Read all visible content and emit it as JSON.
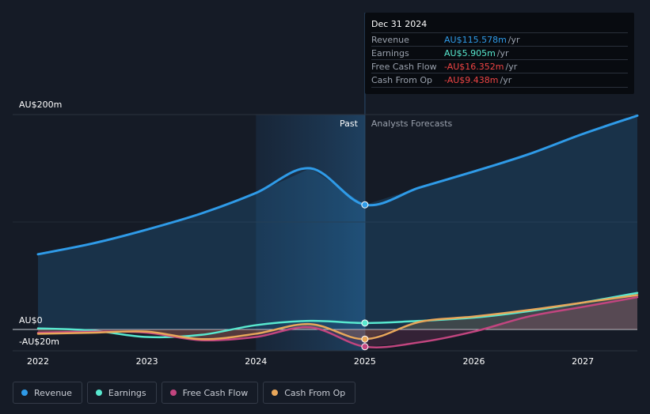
{
  "tooltip": {
    "date": "Dec 31 2024",
    "rows": [
      {
        "label": "Revenue",
        "value": "AU$115.578m",
        "unit": "/yr",
        "color": "#2f9be8"
      },
      {
        "label": "Earnings",
        "value": "AU$5.905m",
        "unit": "/yr",
        "color": "#58e8cf"
      },
      {
        "label": "Free Cash Flow",
        "value": "-AU$16.352m",
        "unit": "/yr",
        "color": "#ef4444"
      },
      {
        "label": "Cash From Op",
        "value": "-AU$9.438m",
        "unit": "/yr",
        "color": "#ef4444"
      }
    ]
  },
  "legend": [
    {
      "label": "Revenue",
      "color": "#2f9be8"
    },
    {
      "label": "Earnings",
      "color": "#58e8cf"
    },
    {
      "label": "Free Cash Flow",
      "color": "#c2457f"
    },
    {
      "label": "Cash From Op",
      "color": "#e8a75a"
    }
  ],
  "chart_data": {
    "type": "line",
    "title": "",
    "xlabel": "",
    "ylabel": "",
    "x_range": [
      2022.0,
      2027.5
    ],
    "ylim": [
      -20,
      200
    ],
    "y_ticks": [
      {
        "value": 200,
        "label": "AU$200m"
      },
      {
        "value": 0,
        "label": "AU$0"
      },
      {
        "value": -20,
        "label": "-AU$20m"
      }
    ],
    "x_ticks": [
      {
        "value": 2022,
        "label": "2022"
      },
      {
        "value": 2023,
        "label": "2023"
      },
      {
        "value": 2024,
        "label": "2024"
      },
      {
        "value": 2025,
        "label": "2025"
      },
      {
        "value": 2026,
        "label": "2026"
      },
      {
        "value": 2027,
        "label": "2027"
      }
    ],
    "past_label": "Past",
    "forecast_label": "Analysts Forecasts",
    "past_end": 2025.0,
    "shaded_start": 2024.0,
    "series": [
      {
        "name": "Revenue",
        "color": "#2f9be8",
        "fill": true,
        "x": [
          2022.0,
          2022.5,
          2023.0,
          2023.5,
          2024.0,
          2024.5,
          2025.0,
          2025.5,
          2026.0,
          2026.5,
          2027.0,
          2027.5
        ],
        "y": [
          70,
          80,
          93,
          108,
          127,
          150,
          116,
          132,
          147,
          163,
          182,
          199
        ]
      },
      {
        "name": "Earnings",
        "color": "#58e8cf",
        "fill": false,
        "x": [
          2022.0,
          2022.5,
          2023.0,
          2023.5,
          2024.0,
          2024.5,
          2025.0,
          2025.5,
          2026.0,
          2026.5,
          2027.0,
          2027.5
        ],
        "y": [
          1,
          -1,
          -7,
          -5,
          4,
          8,
          6,
          8,
          11,
          17,
          25,
          34
        ]
      },
      {
        "name": "Free Cash Flow",
        "color": "#c2457f",
        "fill": true,
        "x": [
          2022.0,
          2022.5,
          2023.0,
          2023.5,
          2024.0,
          2024.5,
          2025.0,
          2025.5,
          2026.0,
          2026.5,
          2027.0,
          2027.5
        ],
        "y": [
          -3,
          -2,
          -3,
          -10,
          -7,
          2,
          -16,
          -12,
          -2,
          12,
          21,
          30
        ]
      },
      {
        "name": "Cash From Op",
        "color": "#e8a75a",
        "fill": true,
        "x": [
          2022.0,
          2022.5,
          2023.0,
          2023.5,
          2024.0,
          2024.5,
          2025.0,
          2025.5,
          2026.0,
          2026.5,
          2027.0,
          2027.5
        ],
        "y": [
          -4,
          -3,
          -2,
          -9,
          -4,
          5,
          -9,
          7,
          12,
          18,
          25,
          32
        ]
      }
    ],
    "highlight_x": 2025.0,
    "highlight_points": [
      {
        "series": "Revenue",
        "y": 116
      },
      {
        "series": "Earnings",
        "y": 6
      },
      {
        "series": "Free Cash Flow",
        "y": -16
      },
      {
        "series": "Cash From Op",
        "y": -9
      }
    ]
  }
}
